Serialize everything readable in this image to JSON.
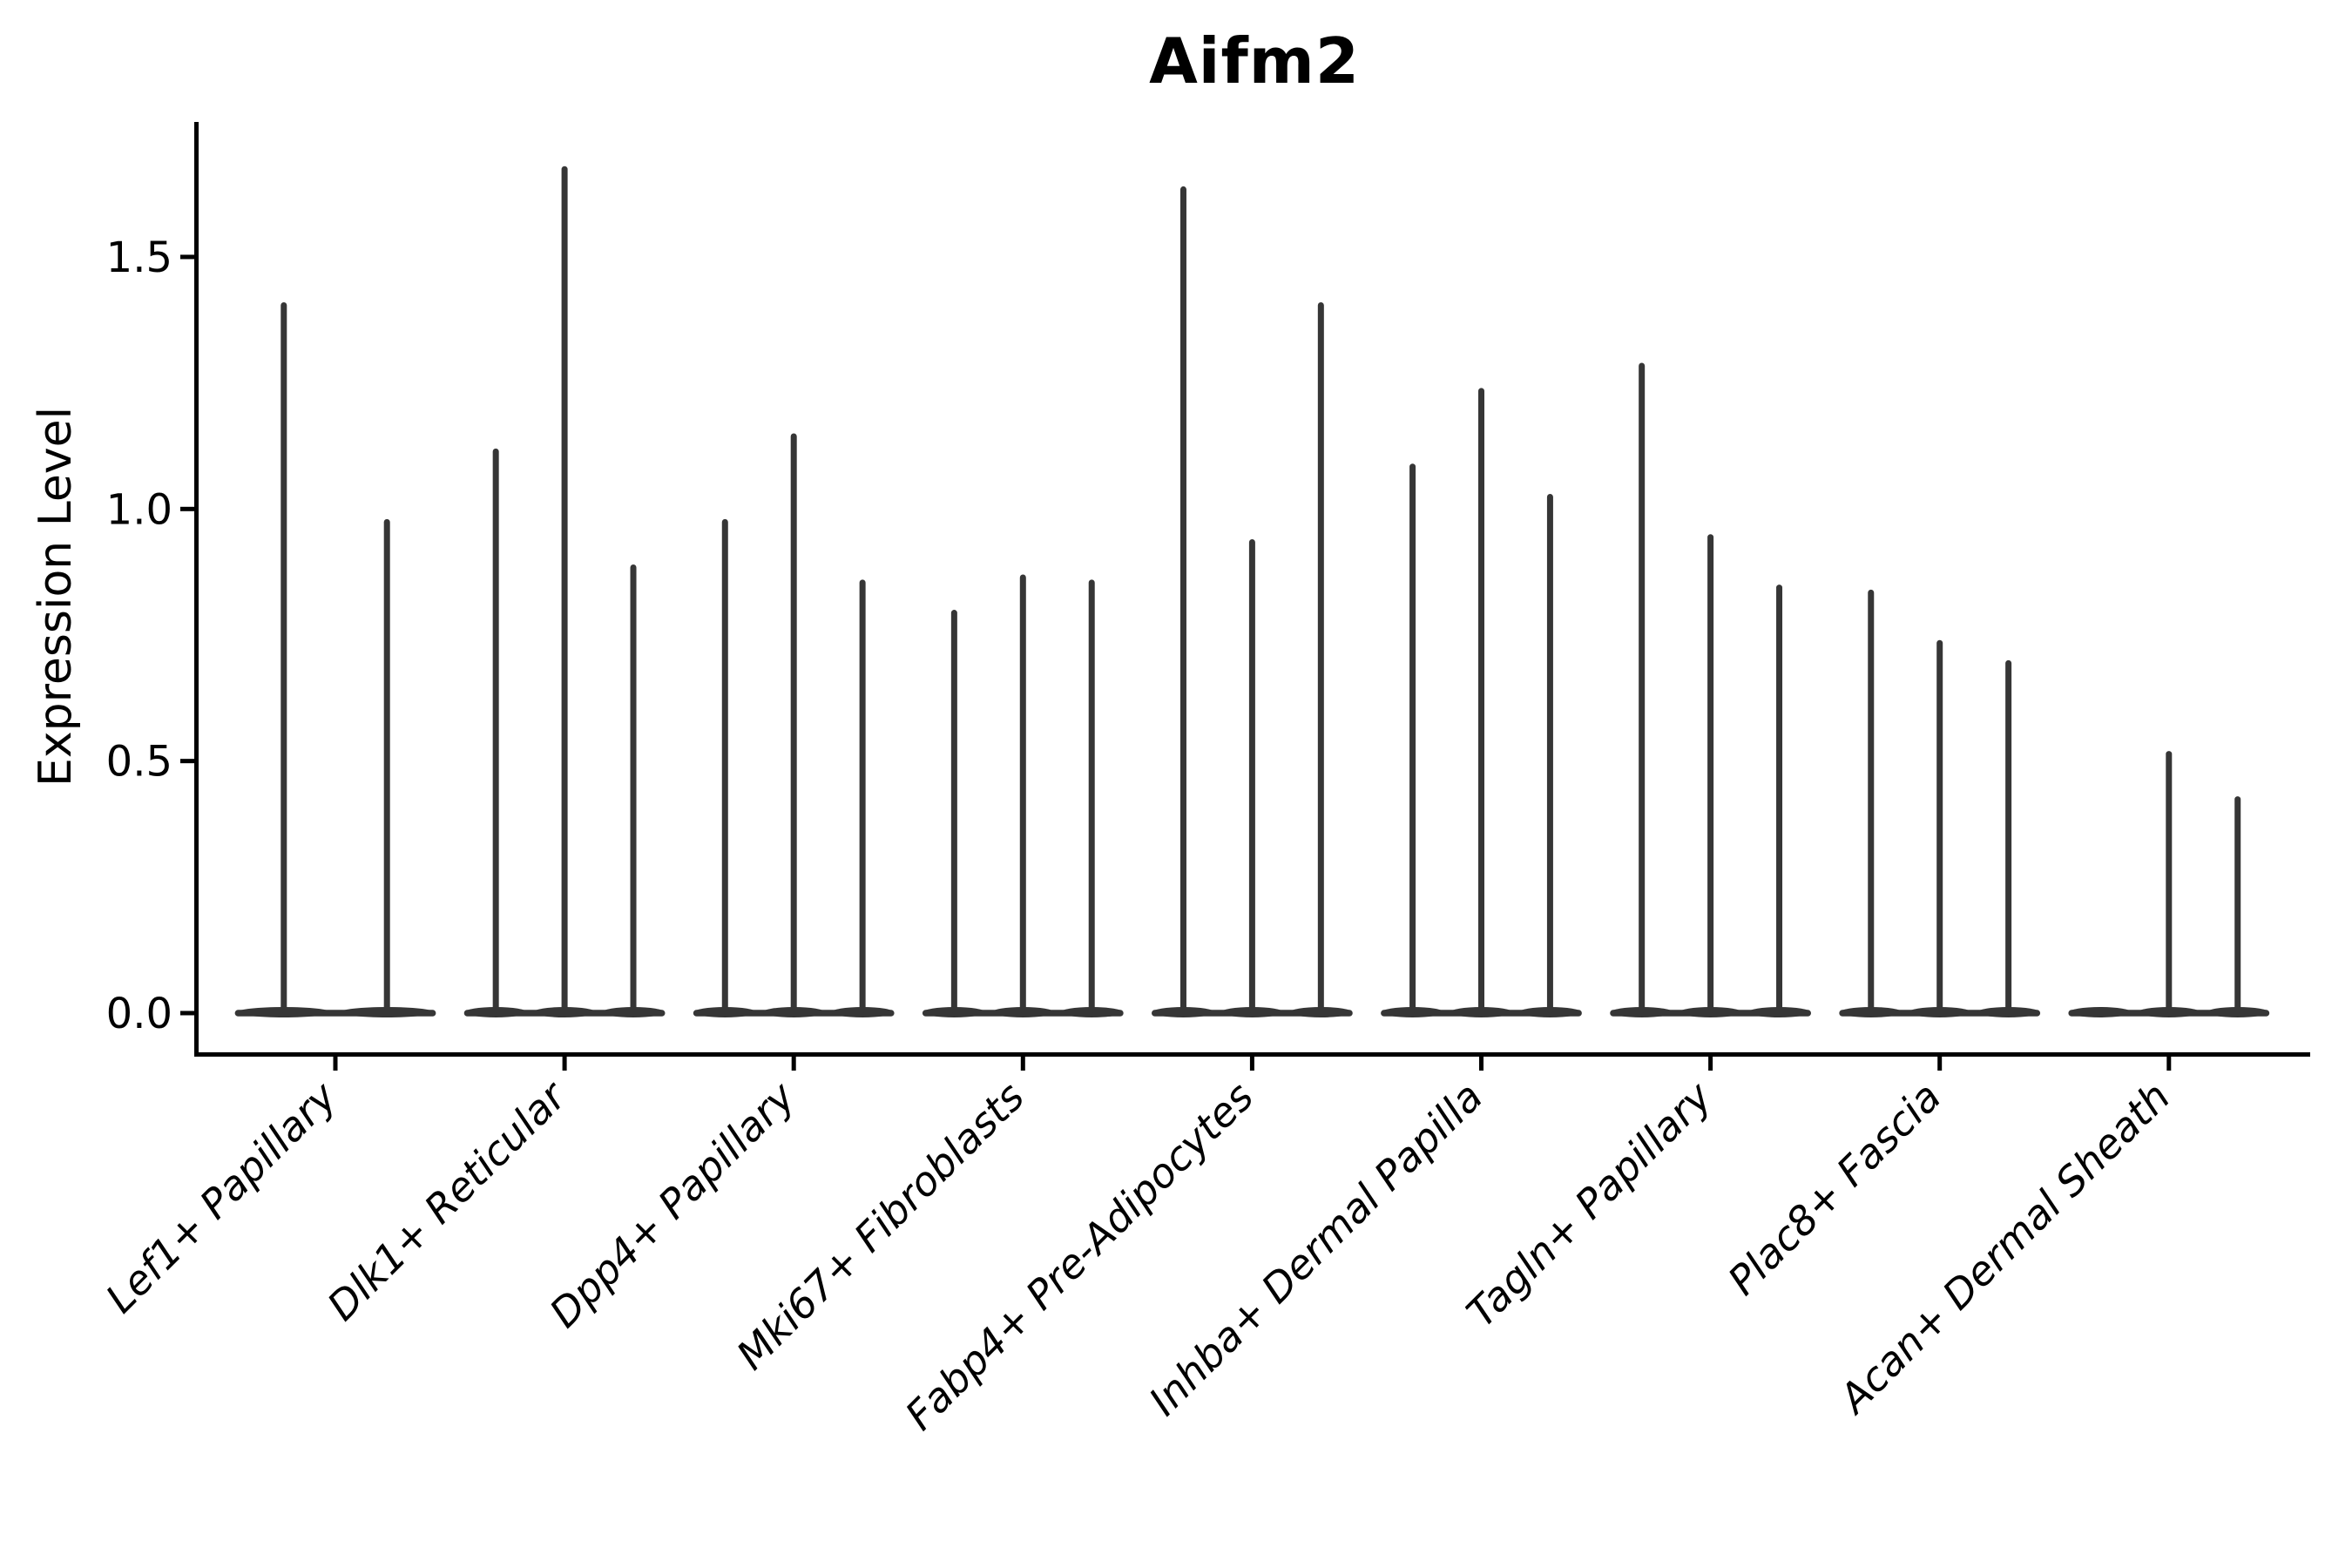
{
  "chart_data": {
    "type": "violin",
    "title": "Aifm2",
    "ylabel": "Expression Level",
    "xlabel": "",
    "ylim": [
      -0.08,
      1.78
    ],
    "yticks": [
      0.0,
      0.5,
      1.0,
      1.5
    ],
    "ytick_labels": [
      "0.0",
      "0.5",
      "1.0",
      "1.5"
    ],
    "grid": false,
    "legend_position": "none",
    "categories": [
      "Lef1+ Papillary",
      "Dlk1+ Reticular",
      "Dpp4+ Papillary",
      "Mki67+ Fibroblasts",
      "Fabp4+ Pre-Adipocytes",
      "Inhba+ Dermal Papilla",
      "Tagln+ Papillary",
      "Plac8+ Fascia",
      "Acan+ Dermal Sheath"
    ],
    "groups": [
      {
        "category": "Lef1+ Papillary",
        "violin_peaks": [
          1.41,
          0.98
        ]
      },
      {
        "category": "Dlk1+ Reticular",
        "violin_peaks": [
          1.12,
          1.68,
          0.89
        ]
      },
      {
        "category": "Dpp4+ Papillary",
        "violin_peaks": [
          0.98,
          1.15,
          0.86
        ]
      },
      {
        "category": "Mki67+ Fibroblasts",
        "violin_peaks": [
          0.8,
          0.87,
          0.86
        ]
      },
      {
        "category": "Fabp4+ Pre-Adipocytes",
        "violin_peaks": [
          1.64,
          0.94,
          1.41
        ]
      },
      {
        "category": "Inhba+ Dermal Papilla",
        "violin_peaks": [
          1.09,
          1.24,
          1.03
        ]
      },
      {
        "category": "Tagln+ Papillary",
        "violin_peaks": [
          1.29,
          0.95,
          0.85
        ]
      },
      {
        "category": "Plac8+ Fascia",
        "violin_peaks": [
          0.84,
          0.74,
          0.7
        ]
      },
      {
        "category": "Acan+ Dermal Sheath",
        "violin_peaks": [
          0.0,
          0.52,
          0.43
        ]
      }
    ],
    "violin_style_note": "needle-thin violins: tall spike to max value with flat mass at 0",
    "colors": {
      "violin": "#363636",
      "axis": "#000000",
      "text": "#000000",
      "background": "#ffffff"
    }
  }
}
